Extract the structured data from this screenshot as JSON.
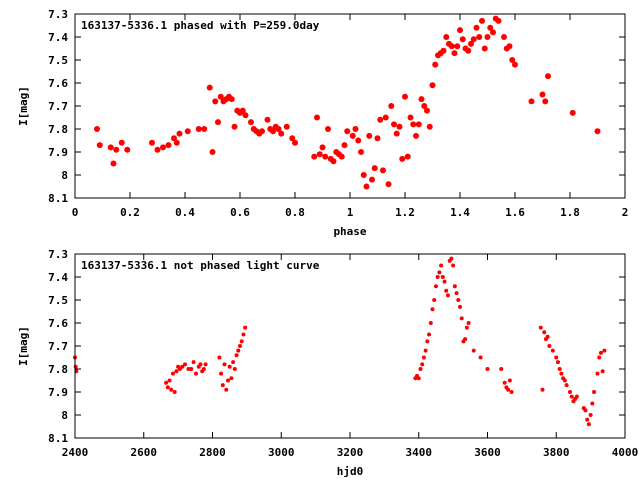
{
  "chart_data": [
    {
      "type": "scatter",
      "title": "163137-5336.1 phased with P=259.0day",
      "xlabel": "phase",
      "ylabel": "I[mag]",
      "xlim": [
        0,
        2
      ],
      "ylim": [
        8.1,
        7.3
      ],
      "y_inverted": true,
      "grid": false,
      "marker_color": "#ff0000",
      "marker": "filled-circle-large",
      "x_ticks": [
        "0",
        "0.2",
        "0.4",
        "0.6",
        "0.8",
        "1",
        "1.2",
        "1.4",
        "1.6",
        "1.8",
        "2"
      ],
      "y_ticks": [
        "7.3",
        "7.4",
        "7.5",
        "7.6",
        "7.7",
        "7.8",
        "7.9",
        "8",
        "8.1"
      ],
      "series": [
        {
          "x": [
            0.08,
            0.09,
            0.13,
            0.14,
            0.15,
            0.17,
            0.19,
            0.28,
            0.3,
            0.32,
            0.34,
            0.36,
            0.37,
            0.38,
            0.41,
            0.45,
            0.47,
            0.49,
            0.5,
            0.51,
            0.52,
            0.53,
            0.54,
            0.55,
            0.56,
            0.57,
            0.58,
            0.59,
            0.6,
            0.61,
            0.62,
            0.64,
            0.65,
            0.66,
            0.67,
            0.68,
            0.7,
            0.71,
            0.72,
            0.73,
            0.74,
            0.75,
            0.77,
            0.79,
            0.8,
            0.87,
            0.88,
            0.89,
            0.9,
            0.91,
            0.92,
            0.93,
            0.94,
            0.95,
            0.96,
            0.97,
            0.98,
            0.99,
            1.01,
            1.02,
            1.03,
            1.04,
            1.05,
            1.06,
            1.07,
            1.08,
            1.09,
            1.1,
            1.11,
            1.12,
            1.13,
            1.14,
            1.15,
            1.16,
            1.17,
            1.18,
            1.19,
            1.2,
            1.21,
            1.22,
            1.23,
            1.24,
            1.25,
            1.26,
            1.27,
            1.28,
            1.29,
            1.3,
            1.31,
            1.32,
            1.33,
            1.34,
            1.35,
            1.36,
            1.37,
            1.38,
            1.39,
            1.4,
            1.41,
            1.42,
            1.43,
            1.44,
            1.45,
            1.46,
            1.47,
            1.48,
            1.49,
            1.5,
            1.51,
            1.52,
            1.53,
            1.54,
            1.56,
            1.57,
            1.58,
            1.59,
            1.6,
            1.66,
            1.7,
            1.71,
            1.72,
            1.81,
            1.9
          ],
          "y": [
            7.8,
            7.87,
            7.88,
            7.95,
            7.89,
            7.86,
            7.89,
            7.86,
            7.89,
            7.88,
            7.87,
            7.84,
            7.86,
            7.82,
            7.81,
            7.8,
            7.8,
            7.62,
            7.9,
            7.68,
            7.77,
            7.66,
            7.68,
            7.67,
            7.66,
            7.67,
            7.79,
            7.72,
            7.73,
            7.72,
            7.74,
            7.77,
            7.8,
            7.81,
            7.82,
            7.81,
            7.76,
            7.8,
            7.81,
            7.79,
            7.8,
            7.82,
            7.79,
            7.84,
            7.86,
            7.92,
            7.75,
            7.91,
            7.88,
            7.92,
            7.8,
            7.93,
            7.94,
            7.9,
            7.91,
            7.92,
            7.87,
            7.81,
            7.83,
            7.8,
            7.85,
            7.9,
            8.0,
            8.05,
            7.83,
            8.02,
            7.97,
            7.84,
            7.76,
            7.98,
            7.75,
            8.04,
            7.7,
            7.78,
            7.82,
            7.79,
            7.93,
            7.66,
            7.92,
            7.75,
            7.78,
            7.83,
            7.78,
            7.67,
            7.7,
            7.72,
            7.79,
            7.61,
            7.52,
            7.48,
            7.47,
            7.46,
            7.4,
            7.43,
            7.44,
            7.47,
            7.44,
            7.37,
            7.41,
            7.45,
            7.46,
            7.43,
            7.41,
            7.36,
            7.4,
            7.33,
            7.45,
            7.4,
            7.36,
            7.38,
            7.32,
            7.33,
            7.4,
            7.45,
            7.44,
            7.5,
            7.52,
            7.68,
            7.65,
            7.68,
            7.57,
            7.73,
            7.81
          ]
        }
      ]
    },
    {
      "type": "scatter",
      "title": "163137-5336.1 not phased light curve",
      "xlabel": "hjd0",
      "ylabel": "I[mag]",
      "xlim": [
        2400,
        4000
      ],
      "ylim": [
        8.1,
        7.3
      ],
      "y_inverted": true,
      "grid": false,
      "marker_color": "#ff0000",
      "marker": "filled-circle-small",
      "x_ticks": [
        "2400",
        "2600",
        "2800",
        "3000",
        "3200",
        "3400",
        "3600",
        "3800",
        "4000"
      ],
      "y_ticks": [
        "7.3",
        "7.4",
        "7.5",
        "7.6",
        "7.7",
        "7.8",
        "7.9",
        "8",
        "8.1"
      ],
      "series": [
        {
          "x": [
            2400,
            2402,
            2404,
            2665,
            2670,
            2675,
            2680,
            2685,
            2690,
            2695,
            2700,
            2705,
            2712,
            2720,
            2730,
            2738,
            2745,
            2752,
            2760,
            2765,
            2770,
            2775,
            2780,
            2820,
            2825,
            2830,
            2835,
            2840,
            2845,
            2850,
            2855,
            2860,
            2865,
            2870,
            2875,
            2880,
            2885,
            2890,
            2895,
            3390,
            3395,
            3400,
            3405,
            3410,
            3415,
            3420,
            3425,
            3430,
            3435,
            3440,
            3445,
            3450,
            3455,
            3460,
            3465,
            3470,
            3475,
            3480,
            3485,
            3490,
            3495,
            3500,
            3505,
            3510,
            3515,
            3520,
            3525,
            3530,
            3535,
            3540,
            3545,
            3560,
            3580,
            3600,
            3640,
            3650,
            3655,
            3660,
            3665,
            3670,
            3755,
            3760,
            3765,
            3770,
            3775,
            3780,
            3790,
            3800,
            3805,
            3810,
            3815,
            3820,
            3825,
            3830,
            3840,
            3845,
            3850,
            3855,
            3860,
            3880,
            3885,
            3890,
            3895,
            3900,
            3905,
            3910,
            3920,
            3925,
            3930,
            3935,
            3940
          ],
          "y": [
            7.75,
            7.79,
            7.81,
            7.86,
            7.88,
            7.85,
            7.89,
            7.82,
            7.9,
            7.81,
            7.79,
            7.8,
            7.79,
            7.78,
            7.8,
            7.8,
            7.77,
            7.82,
            7.79,
            7.78,
            7.81,
            7.8,
            7.78,
            7.75,
            7.82,
            7.87,
            7.78,
            7.89,
            7.85,
            7.79,
            7.84,
            7.77,
            7.8,
            7.74,
            7.72,
            7.7,
            7.68,
            7.65,
            7.62,
            7.84,
            7.83,
            7.84,
            7.8,
            7.78,
            7.75,
            7.72,
            7.68,
            7.65,
            7.6,
            7.54,
            7.5,
            7.44,
            7.4,
            7.38,
            7.35,
            7.4,
            7.42,
            7.46,
            7.48,
            7.33,
            7.32,
            7.35,
            7.44,
            7.47,
            7.5,
            7.53,
            7.58,
            7.68,
            7.67,
            7.62,
            7.6,
            7.72,
            7.75,
            7.8,
            7.8,
            7.86,
            7.88,
            7.89,
            7.85,
            7.9,
            7.62,
            7.89,
            7.64,
            7.67,
            7.66,
            7.7,
            7.72,
            7.75,
            7.77,
            7.8,
            7.82,
            7.84,
            7.85,
            7.87,
            7.9,
            7.92,
            7.94,
            7.93,
            7.92,
            7.97,
            7.98,
            8.02,
            8.04,
            8.0,
            7.95,
            7.9,
            7.82,
            7.75,
            7.73,
            7.81,
            7.72
          ]
        }
      ]
    }
  ]
}
